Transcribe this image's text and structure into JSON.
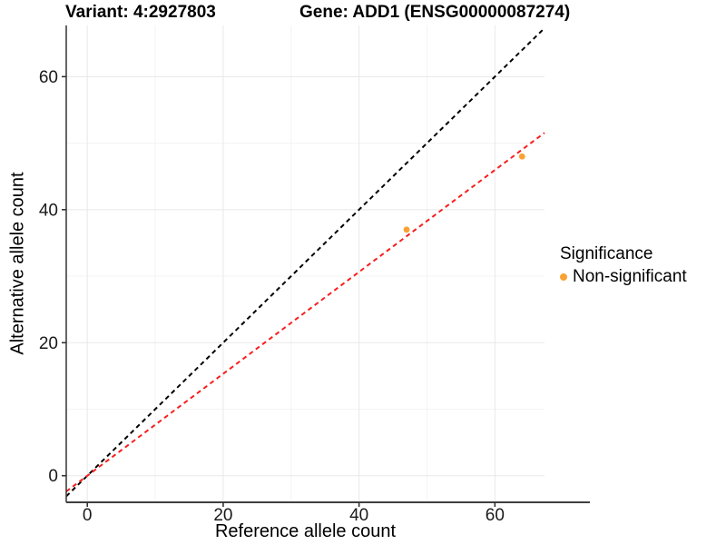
{
  "chart_data": {
    "type": "scatter",
    "title_left": "Variant: 4:2927803",
    "title_right": "Gene: ADD1 (ENSG00000087274)",
    "xlabel": "Reference allele count",
    "ylabel": "Alternative allele count",
    "xlim": [
      -3.1,
      67.3
    ],
    "ylim": [
      -4.0,
      67.7
    ],
    "x_major_ticks": [
      0,
      20,
      40,
      60
    ],
    "y_major_ticks": [
      0,
      20,
      40,
      60
    ],
    "x_minor_ticks": [
      10,
      30,
      50
    ],
    "y_minor_ticks": [
      10,
      30,
      50
    ],
    "grid": "on",
    "series": [
      {
        "name": "Non-significant",
        "color": "#F9A233",
        "points": [
          {
            "x": 47,
            "y": 37
          },
          {
            "x": 64,
            "y": 48
          }
        ]
      }
    ],
    "lines": [
      {
        "name": "identity-line",
        "slope": 1.0,
        "intercept": 0,
        "color": "#000000",
        "style": "dashed"
      },
      {
        "name": "fit-line",
        "slope": 0.766,
        "intercept": 0,
        "color": "#F81E1E",
        "style": "dashed"
      }
    ],
    "legend": {
      "position": "right",
      "title": "Significance",
      "items": [
        {
          "label": "Non-significant",
          "color": "#F9A233"
        }
      ]
    },
    "style": {
      "grid_major_color": "#E8E8E8",
      "grid_minor_color": "#F3F3F3",
      "axis_line_color": "#3F3F3F",
      "tick_color": "#333333",
      "tick_label_color": "#1A1A1A"
    }
  }
}
